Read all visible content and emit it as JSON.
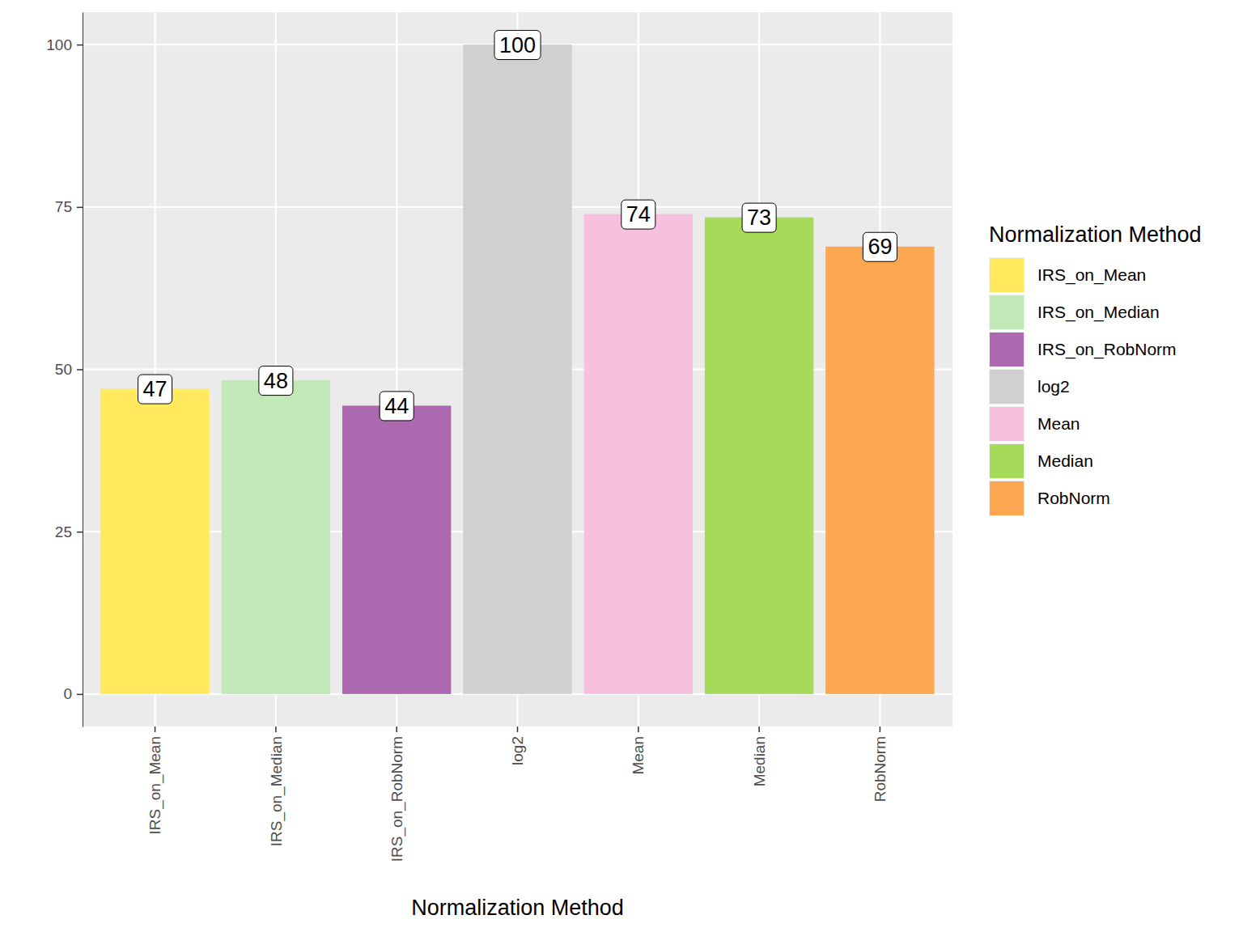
{
  "chart_data": {
    "type": "bar",
    "categories": [
      "IRS_on_Mean",
      "IRS_on_Median",
      "IRS_on_RobNorm",
      "log2",
      "Mean",
      "Median",
      "RobNorm"
    ],
    "values": [
      47,
      48.3,
      44.4,
      100,
      73.9,
      73.4,
      68.9
    ],
    "value_labels": [
      "47",
      "48",
      "44",
      "100",
      "74",
      "73",
      "69"
    ],
    "colors": [
      "#FFE95D",
      "#C2E8B8",
      "#AC69B0",
      "#D0D0D0",
      "#F8C0DF",
      "#A6DB5A",
      "#FBA651"
    ],
    "x_label": "Normalization Method",
    "legend_title": "Normalization Method",
    "legend": "right",
    "ylim": [
      -5,
      105
    ],
    "yticks": [
      0,
      25,
      50,
      75,
      100
    ],
    "grid": true,
    "data_labels": true
  }
}
